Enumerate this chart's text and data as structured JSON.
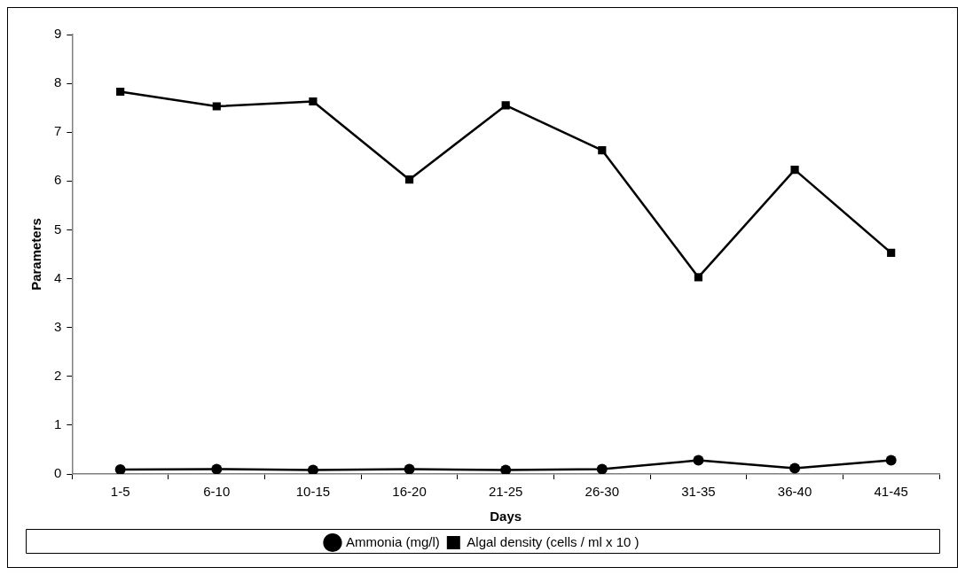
{
  "chart_data": {
    "type": "line",
    "xlabel": "Days",
    "ylabel": "Parameters",
    "categories": [
      "1-5",
      "6-10",
      "10-15",
      "16-20",
      "21-25",
      "26-30",
      "31-35",
      "36-40",
      "41-45"
    ],
    "series": [
      {
        "name": "Ammonia (mg/l)",
        "color": "#000000",
        "marker": "circle",
        "values": [
          0.09,
          0.1,
          0.08,
          0.1,
          0.08,
          0.1,
          0.28,
          0.12,
          0.28
        ]
      },
      {
        "name": "Algal density (cells / ml x 10 )",
        "color": "#000000",
        "marker": "square",
        "values": [
          7.83,
          7.53,
          7.63,
          6.03,
          7.55,
          6.63,
          4.03,
          6.23,
          4.53
        ]
      }
    ],
    "ylim": [
      0,
      9
    ],
    "yticks": [
      0,
      1,
      2,
      3,
      4,
      5,
      6,
      7,
      8,
      9
    ],
    "grid": false,
    "legend": "bottom",
    "line_style": "solid"
  }
}
